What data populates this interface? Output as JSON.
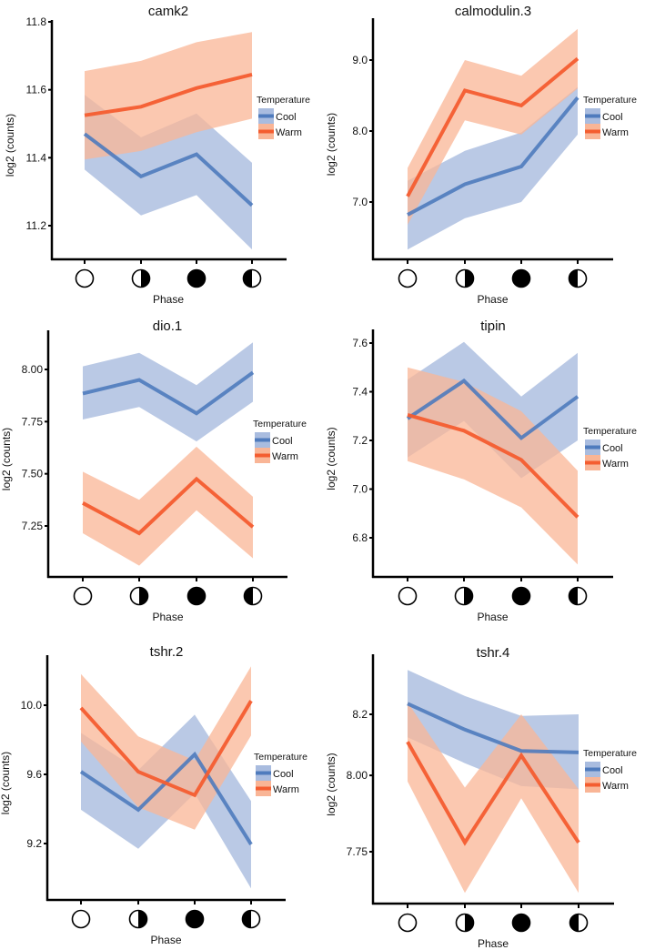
{
  "colors": {
    "cool_line": "#4f7bbd",
    "cool_band": "#a9bcdf",
    "warm_line": "#f45d30",
    "warm_band": "#f9b596",
    "axis": "#000000"
  },
  "chart_data": [
    {
      "type": "line",
      "title": "camk2",
      "xlabel": "Phase",
      "ylabel": "log2 (counts)",
      "categories": [
        "new-moon",
        "first-quarter",
        "full-moon",
        "last-quarter"
      ],
      "yticks": [
        "11.2",
        "11.4",
        "11.6",
        "11.8"
      ],
      "ylim": [
        11.1,
        11.8
      ],
      "legend": {
        "title": "Temperature",
        "position": "right",
        "entries": [
          "Cool",
          "Warm"
        ]
      },
      "series": [
        {
          "name": "Cool",
          "values": [
            11.47,
            11.345,
            11.41,
            11.26
          ],
          "lower": [
            11.365,
            11.23,
            11.29,
            11.13
          ],
          "upper": [
            11.585,
            11.46,
            11.53,
            11.385
          ]
        },
        {
          "name": "Warm",
          "values": [
            11.525,
            11.55,
            11.605,
            11.645
          ],
          "lower": [
            11.395,
            11.42,
            11.475,
            11.515
          ],
          "upper": [
            11.655,
            11.685,
            11.74,
            11.77
          ]
        }
      ]
    },
    {
      "type": "line",
      "title": "calmodulin.3",
      "xlabel": "Phase",
      "ylabel": "log2 (counts)",
      "categories": [
        "new-moon",
        "first-quarter",
        "full-moon",
        "last-quarter"
      ],
      "yticks": [
        "7.0",
        "8.0",
        "9.0"
      ],
      "ylim": [
        6.2,
        9.6
      ],
      "legend": {
        "title": "Temperature",
        "position": "right",
        "entries": [
          "Cool",
          "Warm"
        ]
      },
      "series": [
        {
          "name": "Cool",
          "values": [
            6.82,
            7.25,
            7.5,
            8.47
          ],
          "lower": [
            6.33,
            6.77,
            7.0,
            7.95
          ],
          "upper": [
            7.3,
            7.72,
            7.98,
            8.62
          ]
        },
        {
          "name": "Warm",
          "values": [
            7.08,
            8.57,
            8.36,
            9.02
          ],
          "lower": [
            6.68,
            8.15,
            7.95,
            8.6
          ],
          "upper": [
            7.48,
            9.0,
            8.78,
            9.44
          ]
        }
      ]
    },
    {
      "type": "line",
      "title": "dio.1",
      "xlabel": "Phase",
      "ylabel": "log2 (counts)",
      "categories": [
        "new-moon",
        "first-quarter",
        "full-moon",
        "last-quarter"
      ],
      "yticks": [
        "7.25",
        "7.50",
        "7.75",
        "8.00"
      ],
      "ylim": [
        7.02,
        8.18
      ],
      "legend": {
        "title": "Temperature",
        "position": "right",
        "entries": [
          "Cool",
          "Warm"
        ]
      },
      "series": [
        {
          "name": "Cool",
          "values": [
            7.885,
            7.95,
            7.79,
            7.985
          ],
          "lower": [
            7.76,
            7.82,
            7.655,
            7.845
          ],
          "upper": [
            8.015,
            8.08,
            7.925,
            8.13
          ]
        },
        {
          "name": "Warm",
          "values": [
            7.36,
            7.215,
            7.475,
            7.245
          ],
          "lower": [
            7.215,
            7.06,
            7.325,
            7.095
          ],
          "upper": [
            7.51,
            7.375,
            7.63,
            7.39
          ]
        }
      ]
    },
    {
      "type": "line",
      "title": "tipin",
      "xlabel": "Phase",
      "ylabel": "log2 (counts)",
      "categories": [
        "new-moon",
        "first-quarter",
        "full-moon",
        "last-quarter"
      ],
      "yticks": [
        "6.8",
        "7.0",
        "7.2",
        "7.4",
        "7.6"
      ],
      "ylim": [
        6.65,
        7.66
      ],
      "legend": {
        "title": "Temperature",
        "position": "right",
        "entries": [
          "Cool",
          "Warm"
        ]
      },
      "series": [
        {
          "name": "Cool",
          "values": [
            7.29,
            7.445,
            7.21,
            7.38
          ],
          "lower": [
            7.13,
            7.28,
            7.045,
            7.2
          ],
          "upper": [
            7.45,
            7.605,
            7.38,
            7.56
          ]
        },
        {
          "name": "Warm",
          "values": [
            7.305,
            7.24,
            7.12,
            6.885
          ],
          "lower": [
            7.115,
            7.04,
            6.925,
            6.69
          ],
          "upper": [
            7.5,
            7.44,
            7.32,
            7.075
          ]
        }
      ]
    },
    {
      "type": "line",
      "title": "tshr.2",
      "xlabel": "Phase",
      "ylabel": "log2 (counts)",
      "categories": [
        "new-moon",
        "first-quarter",
        "full-moon",
        "last-quarter"
      ],
      "yticks": [
        "9.2",
        "9.6",
        "10.0"
      ],
      "ylim": [
        8.85,
        10.3
      ],
      "legend": {
        "title": "Temperature",
        "position": "right",
        "entries": [
          "Cool",
          "Warm"
        ]
      },
      "series": [
        {
          "name": "Cool",
          "values": [
            9.615,
            9.395,
            9.715,
            9.195
          ],
          "lower": [
            9.395,
            9.17,
            9.49,
            8.94
          ],
          "upper": [
            9.84,
            9.625,
            9.945,
            9.445
          ]
        },
        {
          "name": "Warm",
          "values": [
            9.985,
            9.615,
            9.48,
            10.025
          ],
          "lower": [
            9.79,
            9.41,
            9.28,
            9.825
          ],
          "upper": [
            10.18,
            9.82,
            9.68,
            10.225
          ]
        }
      ]
    },
    {
      "type": "line",
      "title": "tshr.4",
      "xlabel": "Phase",
      "ylabel": "log2 (counts)",
      "categories": [
        "new-moon",
        "first-quarter",
        "full-moon",
        "last-quarter"
      ],
      "yticks": [
        "7.75",
        "8.00",
        "8.2"
      ],
      "ylim": [
        7.57,
        8.38
      ],
      "legend": {
        "title": "Temperature",
        "position": "right",
        "entries": [
          "Cool",
          "Warm"
        ]
      },
      "series": [
        {
          "name": "Cool",
          "values": [
            8.235,
            8.15,
            8.08,
            8.075
          ],
          "lower": [
            8.125,
            8.04,
            7.965,
            7.955
          ],
          "upper": [
            8.345,
            8.26,
            8.195,
            8.2
          ]
        },
        {
          "name": "Warm",
          "values": [
            8.11,
            7.78,
            8.065,
            7.78
          ],
          "lower": [
            7.98,
            7.615,
            7.925,
            7.615
          ],
          "upper": [
            8.24,
            7.96,
            8.2,
            7.955
          ]
        }
      ]
    }
  ]
}
